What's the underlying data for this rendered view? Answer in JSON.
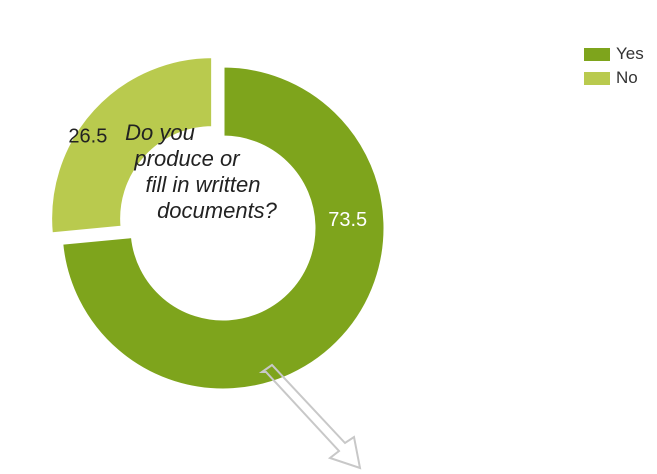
{
  "chart_data": {
    "type": "pie",
    "variant": "donut-exploded",
    "center_question": [
      "Do you",
      "produce or",
      "fill in written",
      "documents?"
    ],
    "slices": [
      {
        "name": "Yes",
        "value": 73.5,
        "label": "73.5",
        "color": "#7EA41C"
      },
      {
        "name": "No",
        "value": 26.5,
        "label": "26.5",
        "color": "#B9CA4E"
      }
    ],
    "legend": {
      "placement": "top-right",
      "items": [
        {
          "label": "Yes",
          "color": "#7EA41C"
        },
        {
          "label": "No",
          "color": "#B9CA4E"
        }
      ]
    },
    "arrow_color": "#C8C8C8"
  }
}
